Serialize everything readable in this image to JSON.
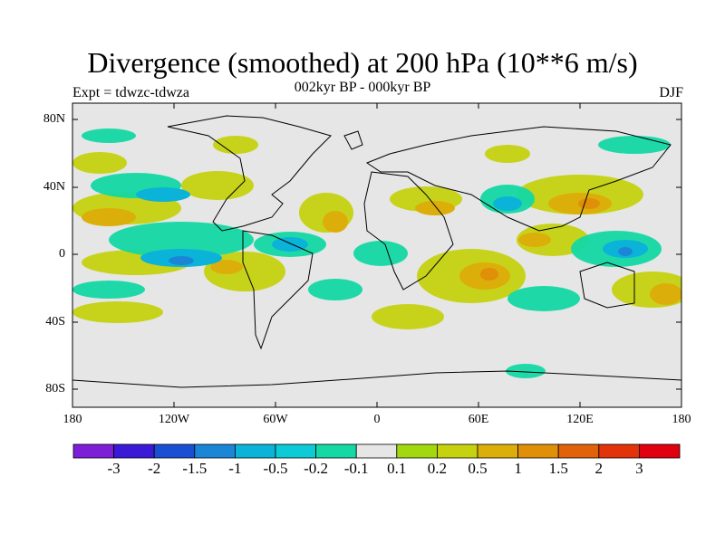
{
  "title": "Divergence (smoothed) at 200 hPa (10**6 m/s)",
  "subtitle": "002kyr BP - 000kyr BP",
  "experiment": "Expt = tdwzc-tdwza",
  "season": "DJF",
  "lat_labels": [
    "80N",
    "40N",
    "0",
    "40S",
    "80S"
  ],
  "lon_labels": [
    "180",
    "120W",
    "60W",
    "0",
    "60E",
    "120E",
    "180"
  ],
  "colorbar": {
    "labels": [
      "-3",
      "-2",
      "-1.5",
      "-1",
      "-0.5",
      "-0.2",
      "-0.1",
      "0.1",
      "0.2",
      "0.5",
      "1",
      "1.5",
      "2",
      "3"
    ],
    "colors": [
      "#7e1fd8",
      "#3a1ad6",
      "#1a4fd3",
      "#1b86d6",
      "#0bb3d9",
      "#0ccad6",
      "#14d9a4",
      "#e6e6e6",
      "#a2d80f",
      "#c6d210",
      "#dcae0a",
      "#df8f08",
      "#e0620a",
      "#e2330b",
      "#e0000f"
    ]
  },
  "map": {
    "background": "#e6e6e6",
    "border": "#000000",
    "coast": "#000000"
  }
}
